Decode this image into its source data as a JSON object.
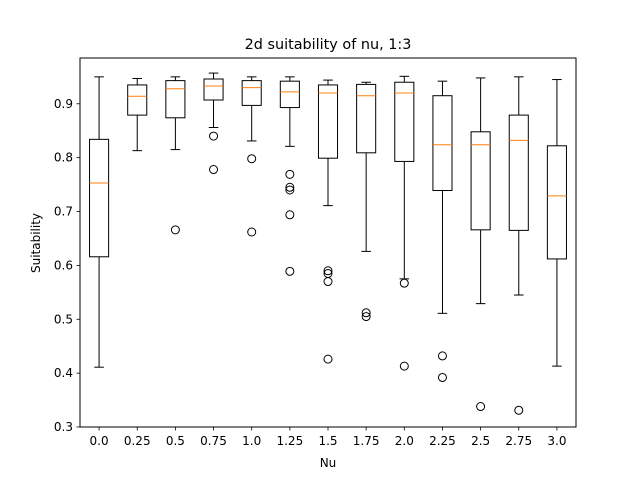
{
  "chart_data": {
    "type": "box",
    "title": "2d suitability of nu, 1:3",
    "xlabel": "Nu",
    "ylabel": "Suitability",
    "ylim": [
      0.3,
      0.985
    ],
    "yticks": [
      0.3,
      0.4,
      0.5,
      0.6,
      0.7,
      0.8,
      0.9
    ],
    "ytick_labels": [
      "0.3",
      "0.4",
      "0.5",
      "0.6",
      "0.7",
      "0.8",
      "0.9"
    ],
    "categories": [
      "0.0",
      "0.25",
      "0.5",
      "0.75",
      "1.0",
      "1.25",
      "1.5",
      "1.75",
      "2.0",
      "2.25",
      "2.5",
      "2.75",
      "3.0"
    ],
    "grid": false,
    "colors": {
      "box": "#000000",
      "median": "#ff7f0e",
      "flier": "#000000"
    },
    "boxes": [
      {
        "label": "0.0",
        "whislo": 0.411,
        "q1": 0.616,
        "med": 0.753,
        "q3": 0.834,
        "whishi": 0.95,
        "fliers": []
      },
      {
        "label": "0.25",
        "whislo": 0.813,
        "q1": 0.879,
        "med": 0.914,
        "q3": 0.935,
        "whishi": 0.947,
        "fliers": []
      },
      {
        "label": "0.5",
        "whislo": 0.815,
        "q1": 0.874,
        "med": 0.928,
        "q3": 0.943,
        "whishi": 0.95,
        "fliers": [
          0.666
        ]
      },
      {
        "label": "0.75",
        "whislo": 0.856,
        "q1": 0.907,
        "med": 0.933,
        "q3": 0.946,
        "whishi": 0.957,
        "fliers": [
          0.84,
          0.778
        ]
      },
      {
        "label": "1.0",
        "whislo": 0.831,
        "q1": 0.897,
        "med": 0.93,
        "q3": 0.943,
        "whishi": 0.95,
        "fliers": [
          0.798,
          0.662
        ]
      },
      {
        "label": "1.25",
        "whislo": 0.821,
        "q1": 0.893,
        "med": 0.922,
        "q3": 0.942,
        "whishi": 0.95,
        "fliers": [
          0.769,
          0.745,
          0.74,
          0.694,
          0.589
        ]
      },
      {
        "label": "1.5",
        "whislo": 0.711,
        "q1": 0.799,
        "med": 0.92,
        "q3": 0.935,
        "whishi": 0.944,
        "fliers": [
          0.59,
          0.585,
          0.57,
          0.426
        ]
      },
      {
        "label": "1.75",
        "whislo": 0.626,
        "q1": 0.809,
        "med": 0.915,
        "q3": 0.936,
        "whishi": 0.94,
        "fliers": [
          0.512,
          0.505
        ]
      },
      {
        "label": "2.0",
        "whislo": 0.575,
        "q1": 0.793,
        "med": 0.92,
        "q3": 0.94,
        "whishi": 0.951,
        "fliers": [
          0.567,
          0.413
        ]
      },
      {
        "label": "2.25",
        "whislo": 0.511,
        "q1": 0.739,
        "med": 0.824,
        "q3": 0.915,
        "whishi": 0.942,
        "fliers": [
          0.432,
          0.392
        ]
      },
      {
        "label": "2.5",
        "whislo": 0.529,
        "q1": 0.666,
        "med": 0.824,
        "q3": 0.848,
        "whishi": 0.948,
        "fliers": [
          0.338
        ]
      },
      {
        "label": "2.75",
        "whislo": 0.545,
        "q1": 0.665,
        "med": 0.832,
        "q3": 0.879,
        "whishi": 0.95,
        "fliers": [
          0.331
        ]
      },
      {
        "label": "3.0",
        "whislo": 0.413,
        "q1": 0.612,
        "med": 0.729,
        "q3": 0.822,
        "whishi": 0.945,
        "fliers": []
      }
    ]
  }
}
